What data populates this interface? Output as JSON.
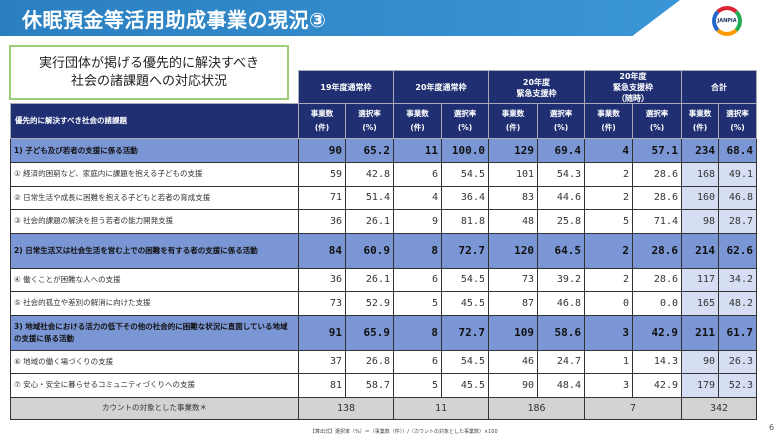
{
  "title": "休眠預金等活用助成事業の現況③",
  "logo_text": "JANPIA",
  "box_text": {
    "line1": "実行団体が掲げる優先的に解決すべき",
    "line2": "社会の諸課題への対応状況"
  },
  "groups": [
    "19年度通常枠",
    "20年度通常枠",
    "20年度\n緊急支援枠",
    "20年度\n緊急支援枠\n（随時）",
    "合計"
  ],
  "subheader": {
    "label": "優先的に解決すべき社会の諸課題",
    "count": "事業数\n(件)",
    "rate": "選択率\n(%)"
  },
  "rows": [
    {
      "type": "group",
      "label": "1) 子ども及び若者の支援に係る活動",
      "values": [
        "90",
        "65.2",
        "11",
        "100.0",
        "129",
        "69.4",
        "4",
        "57.1",
        "234",
        "68.4"
      ]
    },
    {
      "type": "item",
      "label": "① 経済的困窮など、家庭内に課題を抱える子どもの支援",
      "values": [
        "59",
        "42.8",
        "6",
        "54.5",
        "101",
        "54.3",
        "2",
        "28.6",
        "168",
        "49.1"
      ]
    },
    {
      "type": "item",
      "label": "② 日常生活や成長に困難を抱える子どもと若者の育成支援",
      "values": [
        "71",
        "51.4",
        "4",
        "36.4",
        "83",
        "44.6",
        "2",
        "28.6",
        "160",
        "46.8"
      ]
    },
    {
      "type": "item",
      "label": "③ 社会的課題の解決を担う若者の能力開発支援",
      "values": [
        "36",
        "26.1",
        "9",
        "81.8",
        "48",
        "25.8",
        "5",
        "71.4",
        "98",
        "28.7"
      ]
    },
    {
      "type": "group",
      "label": "2) 日常生活又は社会生活を営む上での困難を有する者の支援に係る活動",
      "values": [
        "84",
        "60.9",
        "8",
        "72.7",
        "120",
        "64.5",
        "2",
        "28.6",
        "214",
        "62.6"
      ]
    },
    {
      "type": "item",
      "label": "④ 働くことが困難な人への支援",
      "values": [
        "36",
        "26.1",
        "6",
        "54.5",
        "73",
        "39.2",
        "2",
        "28.6",
        "117",
        "34.2"
      ]
    },
    {
      "type": "item",
      "label": "⑤ 社会的孤立や差別の解消に向けた支援",
      "values": [
        "73",
        "52.9",
        "5",
        "45.5",
        "87",
        "46.8",
        "0",
        "0.0",
        "165",
        "48.2"
      ]
    },
    {
      "type": "group",
      "label": "3) 地域社会における活力の低下その他の社会的に困難な状況に直面している地域の支援に係る活動",
      "values": [
        "91",
        "65.9",
        "8",
        "72.7",
        "109",
        "58.6",
        "3",
        "42.9",
        "211",
        "61.7"
      ]
    },
    {
      "type": "item",
      "label": "⑥ 地域の働く場づくりの支援",
      "values": [
        "37",
        "26.8",
        "6",
        "54.5",
        "46",
        "24.7",
        "1",
        "14.3",
        "90",
        "26.3"
      ]
    },
    {
      "type": "item",
      "label": "⑦ 安心・安全に暮らせるコミュニティづくりへの支援",
      "values": [
        "81",
        "58.7",
        "5",
        "45.5",
        "90",
        "48.4",
        "3",
        "42.9",
        "179",
        "52.3"
      ]
    }
  ],
  "total": {
    "label": "カウントの対象とした事業数＊",
    "values": [
      "138",
      "11",
      "186",
      "7",
      "342"
    ]
  },
  "formula": "【算出式】選択率（%）＝（事業数（件））/（カウントの対象とした事業数）×100",
  "page_number": "6"
}
